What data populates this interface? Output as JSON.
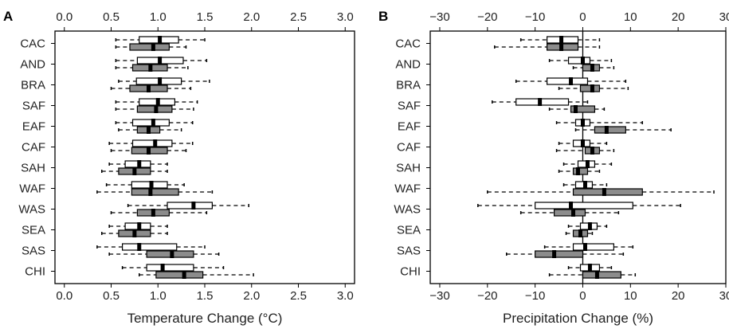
{
  "chart_data": [
    {
      "type": "boxplot",
      "panel_label": "A",
      "xlabel": "Temperature Change (°C)",
      "xlim": [
        -0.1,
        3.1
      ],
      "xticks": [
        0.0,
        0.5,
        1.0,
        1.5,
        2.0,
        2.5,
        3.0
      ],
      "tick_labels": [
        "0.0",
        "0.5",
        "1.0",
        "1.5",
        "2.0",
        "2.5",
        "3.0"
      ],
      "zero_line": false,
      "categories": [
        "CAC",
        "AND",
        "BRA",
        "SAF",
        "EAF",
        "CAF",
        "SAH",
        "WAF",
        "WAS",
        "SEA",
        "SAS",
        "CHI"
      ],
      "series": [
        {
          "fill": "#ffffff",
          "boxes": [
            {
              "min": 0.55,
              "q1": 0.8,
              "median": 1.02,
              "q3": 1.22,
              "max": 1.5
            },
            {
              "min": 0.55,
              "q1": 0.78,
              "median": 1.02,
              "q3": 1.27,
              "max": 1.52
            },
            {
              "min": 0.58,
              "q1": 0.77,
              "median": 1.02,
              "q3": 1.25,
              "max": 1.55
            },
            {
              "min": 0.55,
              "q1": 0.8,
              "median": 1.0,
              "q3": 1.18,
              "max": 1.42
            },
            {
              "min": 0.55,
              "q1": 0.73,
              "median": 0.95,
              "q3": 1.12,
              "max": 1.37
            },
            {
              "min": 0.48,
              "q1": 0.73,
              "median": 0.97,
              "q3": 1.15,
              "max": 1.37
            },
            {
              "min": 0.48,
              "q1": 0.65,
              "median": 0.8,
              "q3": 0.92,
              "max": 1.1
            },
            {
              "min": 0.45,
              "q1": 0.72,
              "median": 0.93,
              "q3": 1.1,
              "max": 1.28
            },
            {
              "min": 0.68,
              "q1": 1.1,
              "median": 1.38,
              "q3": 1.58,
              "max": 1.97
            },
            {
              "min": 0.48,
              "q1": 0.65,
              "median": 0.8,
              "q3": 0.92,
              "max": 1.1
            },
            {
              "min": 0.35,
              "q1": 0.62,
              "median": 0.8,
              "q3": 1.2,
              "max": 1.5
            },
            {
              "min": 0.62,
              "q1": 0.88,
              "median": 1.05,
              "q3": 1.38,
              "max": 1.7
            }
          ]
        },
        {
          "fill": "#8c8c8c",
          "boxes": [
            {
              "min": 0.55,
              "q1": 0.7,
              "median": 0.95,
              "q3": 1.12,
              "max": 1.3
            },
            {
              "min": 0.55,
              "q1": 0.73,
              "median": 0.92,
              "q3": 1.1,
              "max": 1.32
            },
            {
              "min": 0.5,
              "q1": 0.7,
              "median": 0.9,
              "q3": 1.1,
              "max": 1.35
            },
            {
              "min": 0.55,
              "q1": 0.78,
              "median": 0.98,
              "q3": 1.15,
              "max": 1.38
            },
            {
              "min": 0.58,
              "q1": 0.78,
              "median": 0.9,
              "q3": 1.02,
              "max": 1.25
            },
            {
              "min": 0.5,
              "q1": 0.72,
              "median": 0.9,
              "q3": 1.1,
              "max": 1.3
            },
            {
              "min": 0.4,
              "q1": 0.58,
              "median": 0.75,
              "q3": 0.92,
              "max": 1.1
            },
            {
              "min": 0.35,
              "q1": 0.72,
              "median": 0.92,
              "q3": 1.22,
              "max": 1.58
            },
            {
              "min": 0.5,
              "q1": 0.78,
              "median": 0.95,
              "q3": 1.12,
              "max": 1.52
            },
            {
              "min": 0.4,
              "q1": 0.58,
              "median": 0.75,
              "q3": 0.92,
              "max": 1.1
            },
            {
              "min": 0.48,
              "q1": 0.88,
              "median": 1.15,
              "q3": 1.38,
              "max": 1.65
            },
            {
              "min": 0.8,
              "q1": 0.98,
              "median": 1.28,
              "q3": 1.48,
              "max": 2.02
            }
          ]
        }
      ]
    },
    {
      "type": "boxplot",
      "panel_label": "B",
      "xlabel": "Precipitation Change (%)",
      "xlim": [
        -32,
        30
      ],
      "xticks": [
        -30,
        -20,
        -10,
        0,
        10,
        20,
        30
      ],
      "tick_labels": [
        "−30",
        "−20",
        "−10",
        "0",
        "10",
        "20",
        "30"
      ],
      "zero_line": true,
      "categories": [
        "CAC",
        "AND",
        "BRA",
        "SAF",
        "EAF",
        "CAF",
        "SAH",
        "WAF",
        "WAS",
        "SEA",
        "SAS",
        "CHI"
      ],
      "series": [
        {
          "fill": "#ffffff",
          "boxes": [
            {
              "min": -13,
              "q1": -7.5,
              "median": -4.5,
              "q3": -1,
              "max": 3.5
            },
            {
              "min": -7,
              "q1": -3,
              "median": 0,
              "q3": 1.5,
              "max": 6
            },
            {
              "min": -14,
              "q1": -7.5,
              "median": -2.5,
              "q3": 1,
              "max": 9
            },
            {
              "min": -19,
              "q1": -14,
              "median": -9,
              "q3": -3,
              "max": 1
            },
            {
              "min": -5.5,
              "q1": -1.5,
              "median": 0,
              "q3": 1.5,
              "max": 12.5
            },
            {
              "min": -5,
              "q1": -2,
              "median": 0,
              "q3": 1.5,
              "max": 5
            },
            {
              "min": -4,
              "q1": -1,
              "median": 1,
              "q3": 2.5,
              "max": 6
            },
            {
              "min": -4,
              "q1": -1.5,
              "median": 0.5,
              "q3": 2,
              "max": 5
            },
            {
              "min": -22,
              "q1": -10,
              "median": -2.5,
              "q3": 10.5,
              "max": 20.5
            },
            {
              "min": -3,
              "q1": -0.5,
              "median": 1.5,
              "q3": 3,
              "max": 5
            },
            {
              "min": -8,
              "q1": -2,
              "median": 0.5,
              "q3": 6.5,
              "max": 10.5
            },
            {
              "min": -3,
              "q1": -0.5,
              "median": 1.5,
              "q3": 3.5,
              "max": 6
            }
          ]
        },
        {
          "fill": "#8c8c8c",
          "boxes": [
            {
              "min": -18.5,
              "q1": -7.5,
              "median": -4.5,
              "q3": -1,
              "max": 3.5
            },
            {
              "min": -2,
              "q1": 0,
              "median": 2,
              "q3": 3.5,
              "max": 6.5
            },
            {
              "min": -5,
              "q1": -0.5,
              "median": 2,
              "q3": 3.5,
              "max": 9.5
            },
            {
              "min": -7,
              "q1": -2.5,
              "median": -1.5,
              "q3": 2.5,
              "max": 4.5
            },
            {
              "min": -1.5,
              "q1": 2.5,
              "median": 5,
              "q3": 9,
              "max": 18.5
            },
            {
              "min": -5.5,
              "q1": 0.5,
              "median": 2,
              "q3": 3.5,
              "max": 6.5
            },
            {
              "min": -5,
              "q1": -2,
              "median": -1,
              "q3": 1,
              "max": 3.5
            },
            {
              "min": -20,
              "q1": -2,
              "median": 4.5,
              "q3": 12.5,
              "max": 27.5
            },
            {
              "min": -13,
              "q1": -6,
              "median": -2,
              "q3": 0.5,
              "max": 7.5
            },
            {
              "min": -3.5,
              "q1": -2,
              "median": -0.5,
              "q3": 1,
              "max": 2
            },
            {
              "min": -16,
              "q1": -10,
              "median": -6,
              "q3": 0,
              "max": 8.5
            },
            {
              "min": -7,
              "q1": 0,
              "median": 3,
              "q3": 8,
              "max": 11
            }
          ]
        }
      ]
    }
  ]
}
